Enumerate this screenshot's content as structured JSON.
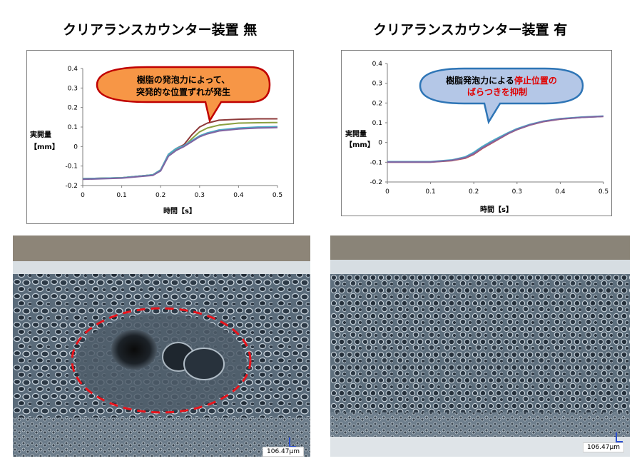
{
  "left_panel": {
    "heading": "クリアランスカウンター装置 無",
    "callout": {
      "lines": [
        "樹脂の発泡力によって、",
        "突発的な位置ずれが発生"
      ],
      "fill": "#f79646",
      "stroke": "#c00000"
    },
    "scale_label": "106.47μm"
  },
  "right_panel": {
    "heading": "クリアランスカウンター装置 有",
    "callout": {
      "line1_normal": "樹脂発泡力による",
      "line1_red": "停止位置の",
      "line2_red": "ばらつきを抑制",
      "fill": "#b4c7e7",
      "stroke": "#2e75b6"
    },
    "scale_label": "106.47μm"
  },
  "chart_data": [
    {
      "type": "line",
      "xlabel": "時間【s】",
      "ylabel": [
        "実開量",
        "【mm】"
      ],
      "xlim": [
        0,
        0.5
      ],
      "ylim": [
        -0.2,
        0.4
      ],
      "xticks": [
        "0",
        "0.1",
        "0.2",
        "0.3",
        "0.4",
        "0.5"
      ],
      "yticks": [
        "-0.2",
        "-0.1",
        "0",
        "0.1",
        "0.2",
        "0.3",
        "0.4"
      ],
      "grid": false,
      "series": [
        {
          "color": "#8e3a3a",
          "x": [
            0,
            0.1,
            0.18,
            0.2,
            0.22,
            0.24,
            0.26,
            0.28,
            0.3,
            0.32,
            0.35,
            0.4,
            0.45,
            0.5
          ],
          "y": [
            -0.165,
            -0.16,
            -0.145,
            -0.12,
            -0.04,
            -0.01,
            0.01,
            0.06,
            0.1,
            0.12,
            0.135,
            0.14,
            0.142,
            0.142
          ]
        },
        {
          "color": "#8aa040",
          "x": [
            0,
            0.1,
            0.18,
            0.2,
            0.22,
            0.24,
            0.26,
            0.28,
            0.3,
            0.32,
            0.35,
            0.4,
            0.45,
            0.5
          ],
          "y": [
            -0.165,
            -0.16,
            -0.145,
            -0.12,
            -0.045,
            -0.015,
            0.0,
            0.04,
            0.075,
            0.095,
            0.11,
            0.12,
            0.122,
            0.123
          ]
        },
        {
          "color": "#4bacc6",
          "x": [
            0,
            0.1,
            0.18,
            0.2,
            0.22,
            0.24,
            0.26,
            0.28,
            0.3,
            0.32,
            0.35,
            0.4,
            0.45,
            0.5
          ],
          "y": [
            -0.165,
            -0.16,
            -0.145,
            -0.12,
            -0.04,
            -0.01,
            0.005,
            0.03,
            0.055,
            0.07,
            0.085,
            0.095,
            0.1,
            0.102
          ]
        },
        {
          "color": "#8064a2",
          "x": [
            0,
            0.1,
            0.18,
            0.2,
            0.22,
            0.24,
            0.26,
            0.28,
            0.3,
            0.32,
            0.35,
            0.4,
            0.45,
            0.5
          ],
          "y": [
            -0.168,
            -0.162,
            -0.148,
            -0.125,
            -0.05,
            -0.02,
            0.0,
            0.025,
            0.05,
            0.065,
            0.08,
            0.09,
            0.095,
            0.097
          ]
        }
      ]
    },
    {
      "type": "line",
      "xlabel": "時間【s】",
      "ylabel": [
        "実開量",
        "【mm】"
      ],
      "xlim": [
        0,
        0.5
      ],
      "ylim": [
        -0.2,
        0.4
      ],
      "xticks": [
        "0",
        "0.1",
        "0.2",
        "0.3",
        "0.4",
        "0.5"
      ],
      "yticks": [
        "-0.2",
        "-0.1",
        "0",
        "0.1",
        "0.2",
        "0.3",
        "0.4"
      ],
      "grid": false,
      "series": [
        {
          "color": "#c0504d",
          "x": [
            0,
            0.1,
            0.15,
            0.18,
            0.2,
            0.22,
            0.24,
            0.26,
            0.28,
            0.3,
            0.33,
            0.36,
            0.4,
            0.45,
            0.5
          ],
          "y": [
            -0.1,
            -0.1,
            -0.092,
            -0.08,
            -0.06,
            -0.03,
            -0.005,
            0.02,
            0.045,
            0.065,
            0.088,
            0.105,
            0.118,
            0.127,
            0.132
          ]
        },
        {
          "color": "#8aa040",
          "x": [
            0,
            0.1,
            0.15,
            0.18,
            0.2,
            0.22,
            0.24,
            0.26,
            0.28,
            0.3,
            0.33,
            0.36,
            0.4,
            0.45,
            0.5
          ],
          "y": [
            -0.098,
            -0.098,
            -0.09,
            -0.076,
            -0.055,
            -0.025,
            0.0,
            0.025,
            0.048,
            0.068,
            0.09,
            0.107,
            0.12,
            0.128,
            0.133
          ]
        },
        {
          "color": "#4bacc6",
          "x": [
            0,
            0.1,
            0.15,
            0.18,
            0.2,
            0.22,
            0.24,
            0.26,
            0.28,
            0.3,
            0.33,
            0.36,
            0.4,
            0.45,
            0.5
          ],
          "y": [
            -0.097,
            -0.097,
            -0.088,
            -0.073,
            -0.05,
            -0.02,
            0.005,
            0.028,
            0.05,
            0.07,
            0.092,
            0.108,
            0.121,
            0.129,
            0.134
          ]
        },
        {
          "color": "#8064a2",
          "x": [
            0,
            0.1,
            0.15,
            0.18,
            0.2,
            0.22,
            0.24,
            0.26,
            0.28,
            0.3,
            0.33,
            0.36,
            0.4,
            0.45,
            0.5
          ],
          "y": [
            -0.099,
            -0.099,
            -0.09,
            -0.077,
            -0.057,
            -0.027,
            -0.002,
            0.022,
            0.046,
            0.066,
            0.089,
            0.106,
            0.119,
            0.127,
            0.132
          ]
        }
      ]
    }
  ]
}
